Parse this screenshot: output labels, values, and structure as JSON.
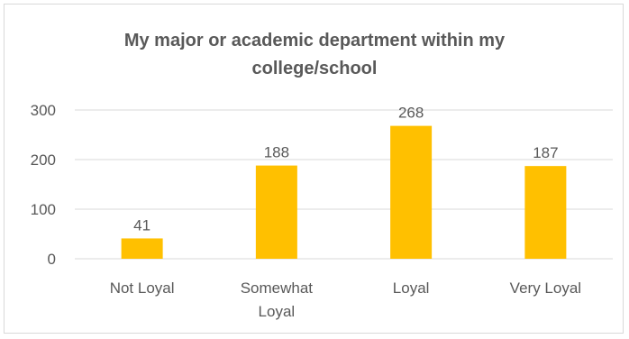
{
  "chart_data": {
    "type": "bar",
    "title_lines": [
      "My major or academic department within my",
      "college/school"
    ],
    "categories": [
      [
        "Not Loyal"
      ],
      [
        "Somewhat",
        "Loyal"
      ],
      [
        "Loyal"
      ],
      [
        "Very Loyal"
      ]
    ],
    "values": [
      41,
      188,
      268,
      187
    ],
    "data_labels": [
      "41",
      "188",
      "268",
      "187"
    ],
    "xlabel": "",
    "ylabel": "",
    "ylim": [
      0,
      300
    ],
    "yticks": [
      0,
      100,
      200,
      300
    ],
    "grid": true,
    "bar_color": "#FFC000",
    "grid_color": "#d9d9d9",
    "text_color": "#595959"
  }
}
